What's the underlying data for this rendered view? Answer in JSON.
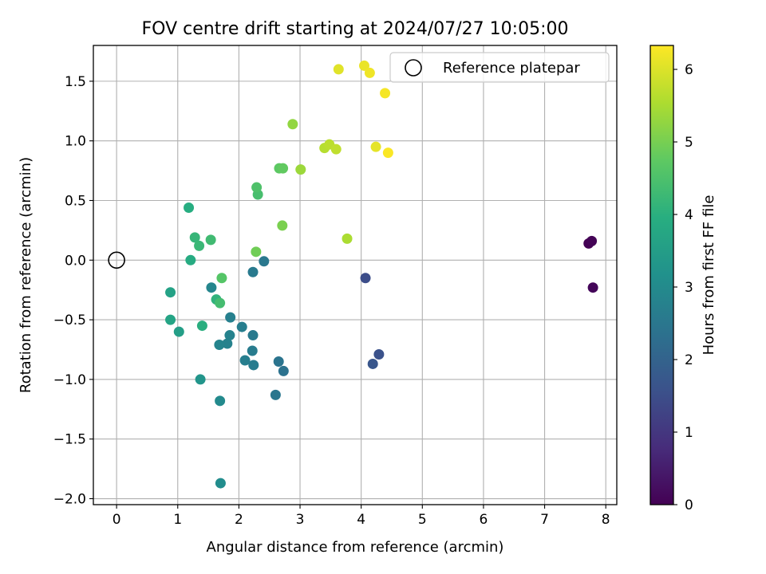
{
  "chart_data": {
    "type": "scatter",
    "title": "FOV centre drift starting at 2024/07/27 10:05:00",
    "xlabel": "Angular distance from reference (arcmin)",
    "ylabel": "Rotation from reference (arcmin)",
    "xlim": [
      -0.38,
      8.18
    ],
    "ylim": [
      -2.05,
      1.8
    ],
    "xticks": [
      "0",
      "1",
      "2",
      "3",
      "4",
      "5",
      "6",
      "7",
      "8"
    ],
    "yticks": [
      "−2.0",
      "−1.5",
      "−1.0",
      "−0.5",
      "0.0",
      "0.5",
      "1.0",
      "1.5"
    ],
    "grid": true,
    "legend": {
      "placement": "upper right",
      "entries": [
        {
          "label": "Reference platepar",
          "marker": "open-circle"
        }
      ]
    },
    "colorbar": {
      "label": "Hours from first FF file",
      "colormap": "viridis",
      "range": [
        0,
        6.33
      ],
      "ticks": [
        "0",
        "1",
        "2",
        "3",
        "4",
        "5",
        "6"
      ]
    },
    "reference_point": {
      "x": 0,
      "y": 0
    },
    "points": [
      {
        "x": 7.72,
        "y": 0.14,
        "hours": 0.0
      },
      {
        "x": 7.77,
        "y": 0.16,
        "hours": 0.05
      },
      {
        "x": 7.79,
        "y": -0.23,
        "hours": 0.1
      },
      {
        "x": 4.07,
        "y": -0.15,
        "hours": 1.5
      },
      {
        "x": 4.29,
        "y": -0.79,
        "hours": 1.6
      },
      {
        "x": 4.19,
        "y": -0.87,
        "hours": 1.7
      },
      {
        "x": 2.73,
        "y": -0.93,
        "hours": 2.4
      },
      {
        "x": 2.65,
        "y": -0.85,
        "hours": 2.45
      },
      {
        "x": 2.6,
        "y": -1.13,
        "hours": 2.5
      },
      {
        "x": 2.41,
        "y": -0.01,
        "hours": 2.55
      },
      {
        "x": 2.23,
        "y": -0.1,
        "hours": 2.6
      },
      {
        "x": 2.23,
        "y": -0.63,
        "hours": 2.6
      },
      {
        "x": 2.22,
        "y": -0.76,
        "hours": 2.65
      },
      {
        "x": 2.24,
        "y": -0.88,
        "hours": 2.65
      },
      {
        "x": 2.05,
        "y": -0.56,
        "hours": 2.7
      },
      {
        "x": 2.1,
        "y": -0.84,
        "hours": 2.7
      },
      {
        "x": 1.86,
        "y": -0.48,
        "hours": 2.75
      },
      {
        "x": 1.85,
        "y": -0.63,
        "hours": 2.8
      },
      {
        "x": 1.81,
        "y": -0.7,
        "hours": 2.8
      },
      {
        "x": 1.68,
        "y": -0.71,
        "hours": 2.85
      },
      {
        "x": 1.55,
        "y": -0.23,
        "hours": 2.9
      },
      {
        "x": 1.69,
        "y": -1.18,
        "hours": 3.0
      },
      {
        "x": 1.7,
        "y": -1.87,
        "hours": 3.1
      },
      {
        "x": 1.37,
        "y": -1.0,
        "hours": 3.3
      },
      {
        "x": 1.02,
        "y": -0.6,
        "hours": 3.55
      },
      {
        "x": 0.88,
        "y": -0.27,
        "hours": 3.65
      },
      {
        "x": 0.88,
        "y": -0.5,
        "hours": 3.7
      },
      {
        "x": 1.21,
        "y": 0.0,
        "hours": 3.9
      },
      {
        "x": 1.18,
        "y": 0.44,
        "hours": 3.95
      },
      {
        "x": 1.4,
        "y": -0.55,
        "hours": 4.0
      },
      {
        "x": 1.63,
        "y": -0.33,
        "hours": 4.1
      },
      {
        "x": 1.28,
        "y": 0.19,
        "hours": 4.2
      },
      {
        "x": 1.35,
        "y": 0.12,
        "hours": 4.25
      },
      {
        "x": 1.54,
        "y": 0.17,
        "hours": 4.35
      },
      {
        "x": 1.69,
        "y": -0.36,
        "hours": 4.4
      },
      {
        "x": 2.31,
        "y": 0.55,
        "hours": 4.45
      },
      {
        "x": 2.29,
        "y": 0.61,
        "hours": 4.55
      },
      {
        "x": 1.72,
        "y": -0.15,
        "hours": 4.65
      },
      {
        "x": 2.66,
        "y": 0.77,
        "hours": 4.75
      },
      {
        "x": 2.72,
        "y": 0.77,
        "hours": 4.8
      },
      {
        "x": 2.28,
        "y": 0.07,
        "hours": 4.95
      },
      {
        "x": 2.71,
        "y": 0.29,
        "hours": 5.05
      },
      {
        "x": 2.88,
        "y": 1.14,
        "hours": 5.3
      },
      {
        "x": 3.01,
        "y": 0.76,
        "hours": 5.4
      },
      {
        "x": 3.77,
        "y": 0.18,
        "hours": 5.55
      },
      {
        "x": 3.4,
        "y": 0.94,
        "hours": 5.65
      },
      {
        "x": 3.48,
        "y": 0.97,
        "hours": 5.7
      },
      {
        "x": 3.59,
        "y": 0.93,
        "hours": 5.75
      },
      {
        "x": 3.63,
        "y": 1.6,
        "hours": 6.05
      },
      {
        "x": 4.24,
        "y": 0.95,
        "hours": 6.1
      },
      {
        "x": 4.05,
        "y": 1.63,
        "hours": 6.15
      },
      {
        "x": 4.14,
        "y": 1.57,
        "hours": 6.2
      },
      {
        "x": 4.39,
        "y": 1.4,
        "hours": 6.25
      },
      {
        "x": 4.44,
        "y": 0.9,
        "hours": 6.3
      }
    ]
  }
}
